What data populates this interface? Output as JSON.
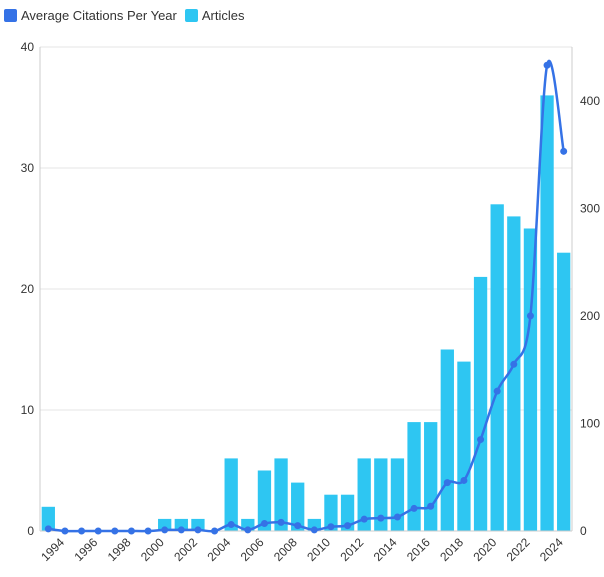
{
  "legend": {
    "line_label": "Average Citations Per Year",
    "bar_label": "Articles"
  },
  "colors": {
    "line": "#3572e6",
    "bar": "#2ec6f2",
    "grid": "#e6e6e6",
    "axis": "#cccccc"
  },
  "chart_data": {
    "type": "bar",
    "x": [
      1993,
      1994,
      1995,
      1996,
      1997,
      1998,
      1999,
      2000,
      2001,
      2002,
      2003,
      2004,
      2005,
      2006,
      2007,
      2008,
      2009,
      2010,
      2011,
      2012,
      2013,
      2014,
      2015,
      2016,
      2017,
      2018,
      2019,
      2020,
      2021,
      2022,
      2023,
      2024
    ],
    "x_tick_labels": [
      "1994",
      "1996",
      "1998",
      "2000",
      "2002",
      "2004",
      "2006",
      "2008",
      "2010",
      "2012",
      "2014",
      "2016",
      "2018",
      "2020",
      "2022",
      "2024"
    ],
    "series": [
      {
        "name": "Articles",
        "type": "bar",
        "axis": "left",
        "values": [
          2,
          0,
          0,
          0,
          0,
          0,
          0,
          1,
          1,
          1,
          0,
          6,
          1,
          5,
          6,
          4,
          1,
          3,
          3,
          6,
          6,
          6,
          9,
          9,
          15,
          14,
          21,
          27,
          26,
          25,
          36,
          23
        ]
      },
      {
        "name": "Average Citations Per Year",
        "type": "line",
        "axis": "right",
        "values": [
          2,
          0,
          0,
          0,
          0,
          0,
          0,
          1,
          1,
          1,
          0,
          6,
          1,
          7,
          8,
          5,
          1,
          4,
          5,
          11,
          12,
          13,
          21,
          23,
          45,
          47,
          85,
          130,
          155,
          200,
          433,
          353
        ]
      }
    ],
    "y_left": {
      "ylim": [
        0,
        40
      ],
      "ticks": [
        0,
        10,
        20,
        30,
        40
      ]
    },
    "y_right": {
      "ylim": [
        0,
        450
      ],
      "ticks": [
        0,
        100,
        200,
        300,
        400
      ]
    },
    "grid": true,
    "legend_position": "top-left"
  }
}
